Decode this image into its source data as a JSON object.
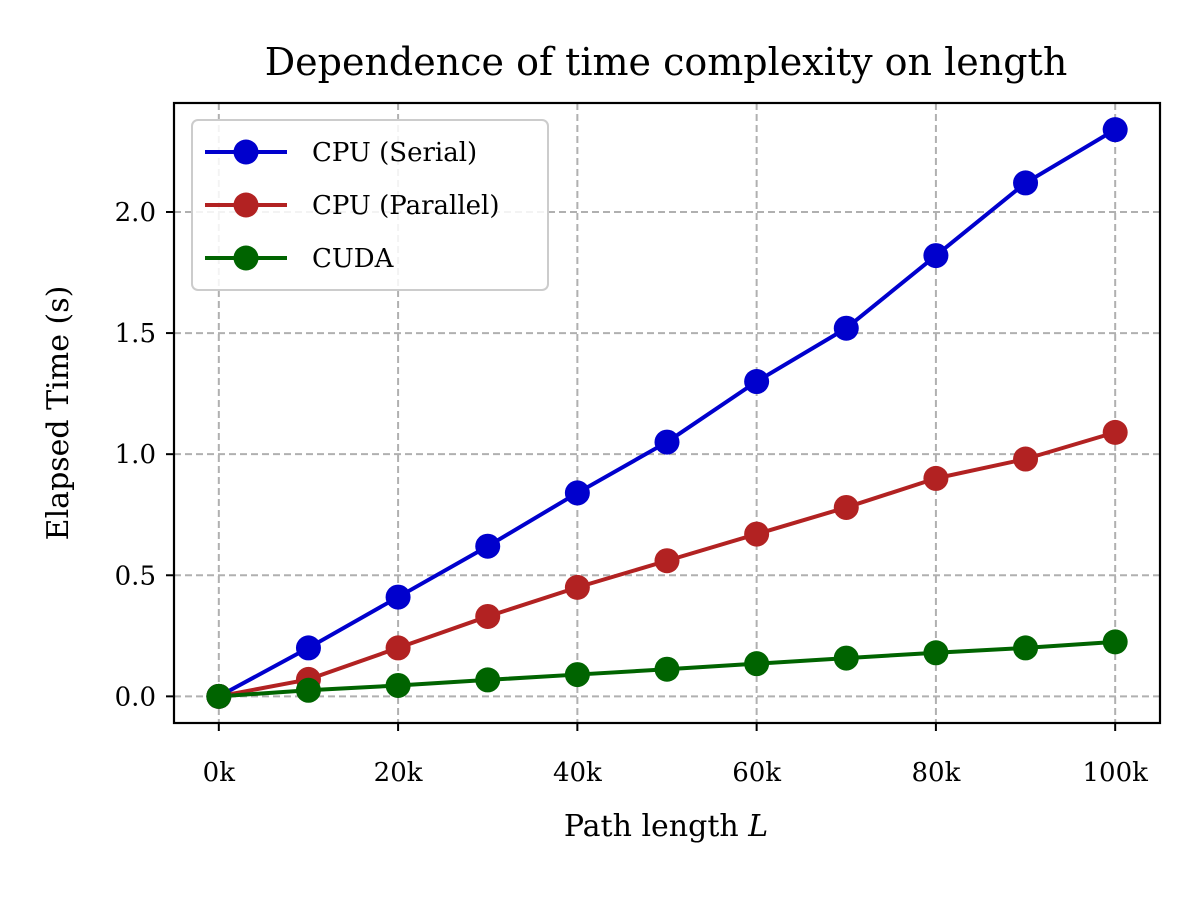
{
  "chart_data": {
    "type": "line",
    "title": "Dependence of time complexity on length",
    "xlabel_text": "Path length ",
    "xlabel_symbol": "L",
    "ylabel": "Elapsed Time (s)",
    "x": [
      0,
      10000,
      20000,
      30000,
      40000,
      50000,
      60000,
      70000,
      80000,
      90000,
      100000
    ],
    "x_unit_suffix": "k",
    "xticks": [
      0,
      20000,
      40000,
      60000,
      80000,
      100000
    ],
    "xtick_labels": [
      "0k",
      "20k",
      "40k",
      "60k",
      "80k",
      "100k"
    ],
    "yticks": [
      0.0,
      0.5,
      1.0,
      1.5,
      2.0
    ],
    "ytick_labels": [
      "0.0",
      "0.5",
      "1.0",
      "1.5",
      "2.0"
    ],
    "xlim": [
      -5000,
      105000
    ],
    "ylim": [
      -0.11,
      2.45
    ],
    "grid": true,
    "legend_position": "top-left",
    "series": [
      {
        "name": "CPU (Serial)",
        "color": "#0000cd",
        "values": [
          0.0,
          0.2,
          0.41,
          0.62,
          0.84,
          1.05,
          1.3,
          1.52,
          1.82,
          2.12,
          2.34
        ]
      },
      {
        "name": "CPU (Parallel)",
        "color": "#b22222",
        "values": [
          0.0,
          0.07,
          0.2,
          0.33,
          0.45,
          0.56,
          0.67,
          0.78,
          0.9,
          0.98,
          1.09
        ]
      },
      {
        "name": "CUDA",
        "color": "#006400",
        "values": [
          0.0,
          0.025,
          0.045,
          0.068,
          0.09,
          0.112,
          0.135,
          0.158,
          0.18,
          0.2,
          0.225
        ]
      }
    ]
  }
}
